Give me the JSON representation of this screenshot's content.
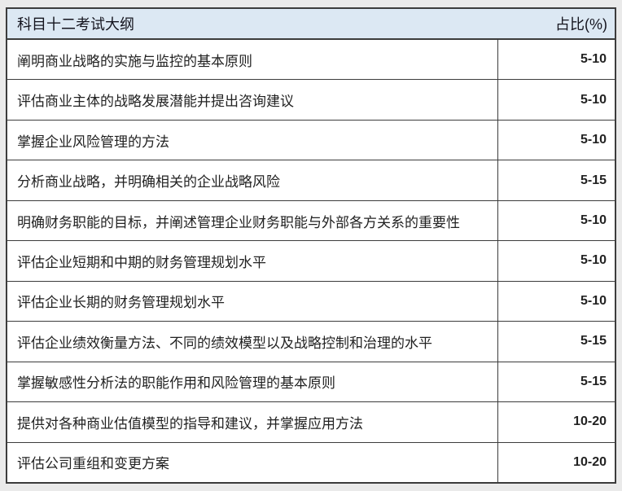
{
  "colors": {
    "page_bg": "#eaeaea",
    "header_bg": "#dce8f3",
    "border": "#3c3c3c",
    "row_bg": "#ffffff",
    "header_text": "#14141e",
    "body_text": "#222222"
  },
  "table": {
    "header": {
      "title": "科目十二考试大纲",
      "percent_label": "占比(%)"
    },
    "rows": [
      {
        "text": "阐明商业战略的实施与监控的基本原则",
        "value": "5-10"
      },
      {
        "text": "评估商业主体的战略发展潜能并提出咨询建议",
        "value": "5-10"
      },
      {
        "text": "掌握企业风险管理的方法",
        "value": "5-10"
      },
      {
        "text": "分析商业战略，并明确相关的企业战略风险",
        "value": "5-15"
      },
      {
        "text": "明确财务职能的目标，并阐述管理企业财务职能与外部各方关系的重要性",
        "value": "5-10"
      },
      {
        "text": "评估企业短期和中期的财务管理规划水平",
        "value": "5-10"
      },
      {
        "text": "评估企业长期的财务管理规划水平",
        "value": "5-10"
      },
      {
        "text": "评估企业绩效衡量方法、不同的绩效模型以及战略控制和治理的水平",
        "value": "5-15"
      },
      {
        "text": "掌握敏感性分析法的职能作用和风险管理的基本原则",
        "value": "5-15"
      },
      {
        "text": "提供对各种商业估值模型的指导和建议，并掌握应用方法",
        "value": "10-20"
      },
      {
        "text": "评估公司重组和变更方案",
        "value": "10-20"
      }
    ]
  }
}
